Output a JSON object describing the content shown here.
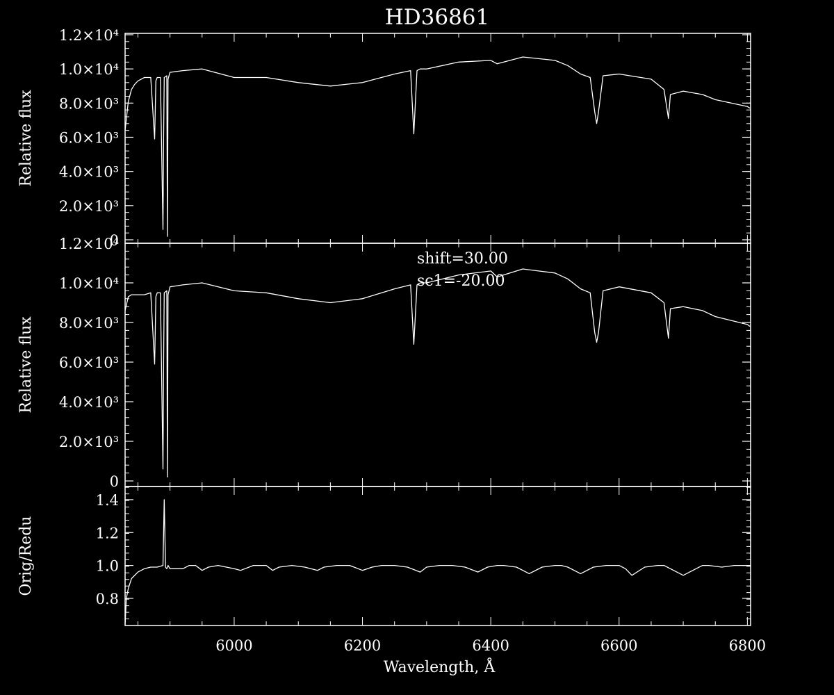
{
  "title": "HD36861",
  "colors": {
    "background": "#000000",
    "foreground": "#ffffff"
  },
  "chart_data": [
    {
      "type": "line",
      "panel": "top",
      "ylabel": "Relative flux",
      "xlim": [
        5830,
        6805
      ],
      "ylim": [
        0,
        12000
      ],
      "yticks": [
        {
          "v": 0,
          "label": "0"
        },
        {
          "v": 2000,
          "label": "2.0×10³"
        },
        {
          "v": 4000,
          "label": "4.0×10³"
        },
        {
          "v": 6000,
          "label": "6.0×10³"
        },
        {
          "v": 8000,
          "label": "8.0×10³"
        },
        {
          "v": 10000,
          "label": "1.0×10⁴"
        },
        {
          "v": 12000,
          "label": "1.2×10⁴"
        }
      ],
      "x": [
        5830,
        5835,
        5840,
        5845,
        5850,
        5855,
        5860,
        5870,
        5876,
        5878,
        5880,
        5885,
        5889,
        5890,
        5891,
        5895,
        5896,
        5897,
        5900,
        5920,
        5950,
        6000,
        6050,
        6100,
        6150,
        6200,
        6250,
        6275,
        6280,
        6285,
        6290,
        6300,
        6350,
        6400,
        6410,
        6450,
        6500,
        6520,
        6540,
        6555,
        6562,
        6565,
        6568,
        6575,
        6600,
        6650,
        6670,
        6677,
        6680,
        6700,
        6730,
        6750,
        6800,
        6804
      ],
      "y": [
        6400,
        8100,
        8800,
        9100,
        9300,
        9400,
        9500,
        9500,
        5900,
        9300,
        9500,
        9500,
        600,
        6000,
        9500,
        9600,
        200,
        9400,
        9800,
        9900,
        10000,
        9500,
        9500,
        9200,
        9000,
        9200,
        9700,
        9900,
        6200,
        9900,
        10000,
        10000,
        10400,
        10500,
        10300,
        10700,
        10500,
        10200,
        9700,
        9500,
        7500,
        6800,
        7500,
        9600,
        9700,
        9400,
        8800,
        7100,
        8500,
        8700,
        8500,
        8200,
        7800,
        7700
      ]
    },
    {
      "type": "line",
      "panel": "middle",
      "ylabel": "Relative flux",
      "xlim": [
        5830,
        6805
      ],
      "ylim": [
        0,
        12000
      ],
      "annotations": [
        "shift=30.00",
        "sc1=-20.00"
      ],
      "yticks": [
        {
          "v": 0,
          "label": "0"
        },
        {
          "v": 2000,
          "label": "2.0×10³"
        },
        {
          "v": 4000,
          "label": "4.0×10³"
        },
        {
          "v": 6000,
          "label": "6.0×10³"
        },
        {
          "v": 8000,
          "label": "8.0×10³"
        },
        {
          "v": 10000,
          "label": "1.0×10⁴"
        },
        {
          "v": 12000,
          "label": "1.2×10⁴"
        }
      ],
      "x": [
        5830,
        5835,
        5840,
        5850,
        5860,
        5870,
        5876,
        5878,
        5880,
        5885,
        5889,
        5890,
        5891,
        5895,
        5896,
        5897,
        5900,
        5920,
        5950,
        6000,
        6050,
        6100,
        6150,
        6200,
        6250,
        6275,
        6280,
        6285,
        6290,
        6300,
        6350,
        6400,
        6410,
        6450,
        6500,
        6520,
        6540,
        6555,
        6562,
        6565,
        6568,
        6575,
        6600,
        6650,
        6670,
        6677,
        6680,
        6700,
        6730,
        6750,
        6800,
        6804
      ],
      "y": [
        8600,
        9300,
        9400,
        9400,
        9400,
        9500,
        5900,
        9300,
        9500,
        9500,
        600,
        6000,
        9500,
        9600,
        200,
        9400,
        9800,
        9900,
        10000,
        9600,
        9500,
        9200,
        9000,
        9200,
        9700,
        9900,
        6900,
        9900,
        10000,
        10000,
        10400,
        10600,
        10300,
        10700,
        10500,
        10200,
        9700,
        9500,
        7500,
        7000,
        7500,
        9600,
        9800,
        9500,
        9000,
        7200,
        8700,
        8800,
        8600,
        8300,
        7900,
        7800
      ]
    },
    {
      "type": "line",
      "panel": "bottom",
      "ylabel": "Orig/Redu",
      "xlabel": "Wavelength, Å",
      "xlim": [
        5830,
        6805
      ],
      "ylim": [
        0.635,
        1.48
      ],
      "yticks": [
        {
          "v": 0.8,
          "label": "0.8"
        },
        {
          "v": 1.0,
          "label": "1.0"
        },
        {
          "v": 1.2,
          "label": "1.2"
        },
        {
          "v": 1.4,
          "label": "1.4"
        }
      ],
      "xticks": [
        {
          "v": 6000,
          "label": "6000"
        },
        {
          "v": 6200,
          "label": "6200"
        },
        {
          "v": 6400,
          "label": "6400"
        },
        {
          "v": 6600,
          "label": "6600"
        },
        {
          "v": 6800,
          "label": "6800"
        }
      ],
      "x": [
        5830,
        5832,
        5835,
        5840,
        5850,
        5860,
        5870,
        5880,
        5889,
        5891,
        5893,
        5895,
        5897,
        5900,
        5920,
        5930,
        5940,
        5950,
        5960,
        5975,
        6000,
        6010,
        6030,
        6050,
        6060,
        6070,
        6090,
        6110,
        6130,
        6140,
        6160,
        6180,
        6200,
        6215,
        6230,
        6250,
        6270,
        6290,
        6300,
        6320,
        6340,
        6360,
        6380,
        6395,
        6410,
        6420,
        6440,
        6460,
        6480,
        6500,
        6510,
        6520,
        6540,
        6560,
        6580,
        6600,
        6610,
        6620,
        6640,
        6660,
        6670,
        6680,
        6700,
        6720,
        6730,
        6740,
        6760,
        6780,
        6800,
        6804
      ],
      "y": [
        0.64,
        0.8,
        0.86,
        0.92,
        0.96,
        0.98,
        0.99,
        0.99,
        1.0,
        1.4,
        0.99,
        0.98,
        1.0,
        0.98,
        0.98,
        1.0,
        1.0,
        0.97,
        0.99,
        1.0,
        0.98,
        0.97,
        1.0,
        1.0,
        0.97,
        0.99,
        1.0,
        0.99,
        0.97,
        0.99,
        1.0,
        1.0,
        0.97,
        0.99,
        1.0,
        1.0,
        0.99,
        0.96,
        0.99,
        1.0,
        1.0,
        0.99,
        0.96,
        0.99,
        1.0,
        1.0,
        0.99,
        0.95,
        0.99,
        1.0,
        1.0,
        0.99,
        0.95,
        0.99,
        1.0,
        1.0,
        0.98,
        0.94,
        0.99,
        1.0,
        1.0,
        0.98,
        0.94,
        0.98,
        1.0,
        1.0,
        0.99,
        1.0,
        1.0,
        1.0
      ]
    }
  ]
}
